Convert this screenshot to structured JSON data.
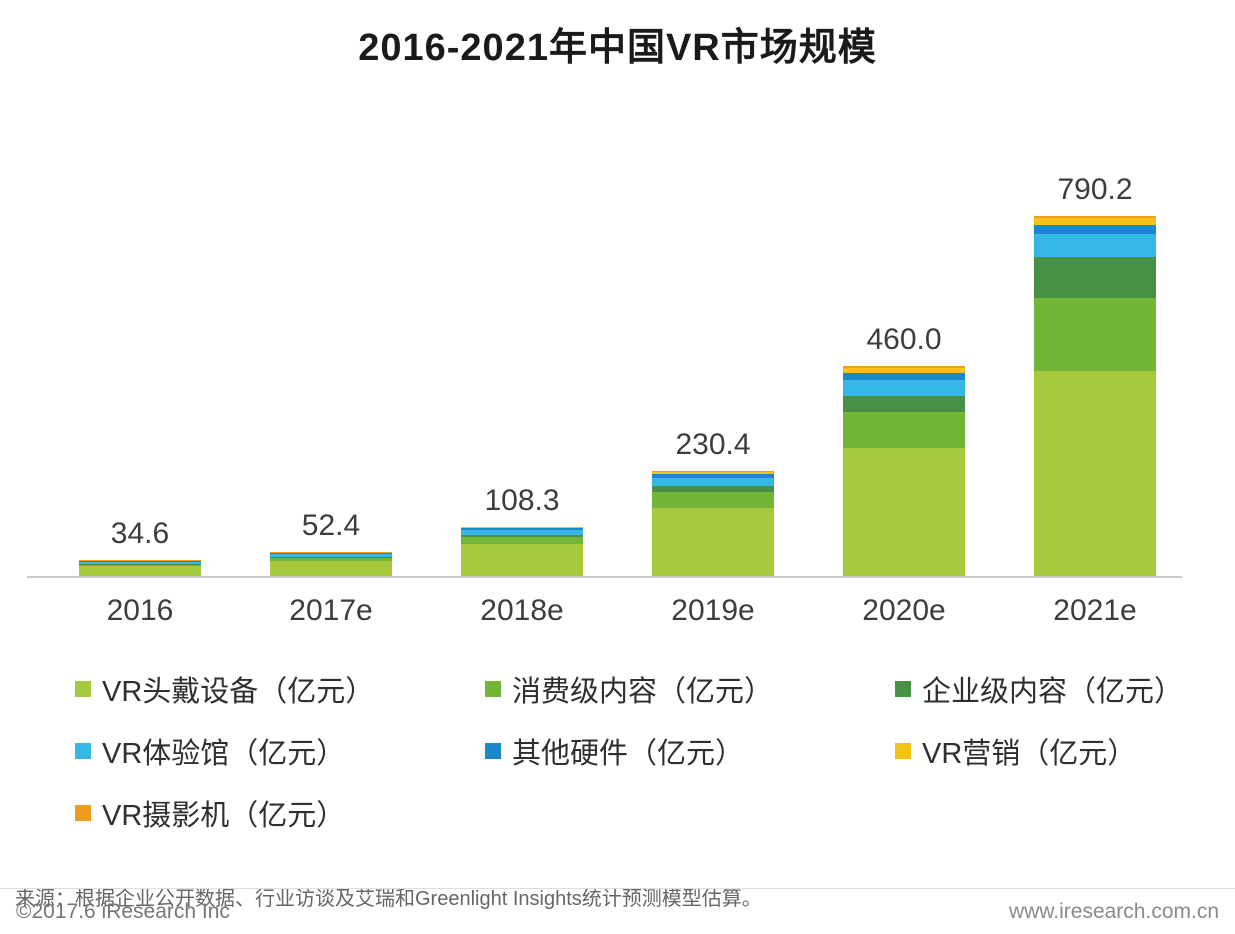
{
  "title": "2016-2021年中国VR市场规模",
  "chart_data": {
    "type": "bar",
    "stacked": true,
    "title": "2016-2021年中国VR市场规模",
    "xlabel": "",
    "ylabel": "",
    "unit": "亿元",
    "grid": false,
    "legend_position": "bottom",
    "ylim": [
      0,
      860
    ],
    "categories": [
      "2016",
      "2017e",
      "2018e",
      "2019e",
      "2020e",
      "2021e"
    ],
    "totals": [
      34.6,
      52.4,
      108.3,
      230.4,
      460.0,
      790.2
    ],
    "total_labels": [
      "34.6",
      "52.4",
      "108.3",
      "230.4",
      "460.0",
      "790.2"
    ],
    "series": [
      {
        "key": "vr-headset",
        "name": "VR头戴设备（亿元）",
        "color": "#a6c93d",
        "values": [
          21.0,
          32.0,
          70.0,
          150.0,
          280.0,
          450.0
        ]
      },
      {
        "key": "consumer-content",
        "name": "消费级内容（亿元）",
        "color": "#73b637",
        "values": [
          4.0,
          7.0,
          15.0,
          35.0,
          80.0,
          160.0
        ]
      },
      {
        "key": "enterprise-content",
        "name": "企业级内容（亿元）",
        "color": "#469144",
        "values": [
          1.5,
          2.5,
          6.0,
          12.0,
          35.0,
          90.0
        ]
      },
      {
        "key": "vr-experience-hall",
        "name": "VR体验馆（亿元）",
        "color": "#36b7e6",
        "values": [
          4.5,
          6.0,
          9.0,
          18.0,
          35.0,
          50.0
        ]
      },
      {
        "key": "other-hardware",
        "name": "其他硬件（亿元）",
        "color": "#1b87cd",
        "values": [
          2.0,
          2.9,
          4.5,
          8.0,
          15.0,
          20.0
        ]
      },
      {
        "key": "vr-marketing",
        "name": "VR营销（亿元）",
        "color": "#f3c317",
        "values": [
          1.0,
          1.3,
          2.5,
          5.0,
          12.0,
          17.0
        ]
      },
      {
        "key": "vr-camera",
        "name": "VR摄影机（亿元）",
        "color": "#ee9b20",
        "values": [
          0.6,
          0.7,
          1.3,
          2.4,
          3.0,
          3.2
        ]
      }
    ]
  },
  "source_note": "来源：根据企业公开数据、行业访谈及艾瑞和Greenlight Insights统计预测模型估算。",
  "footer": {
    "copyright": "©2017.6 iResearch Inc",
    "website": "www.iresearch.com.cn"
  }
}
